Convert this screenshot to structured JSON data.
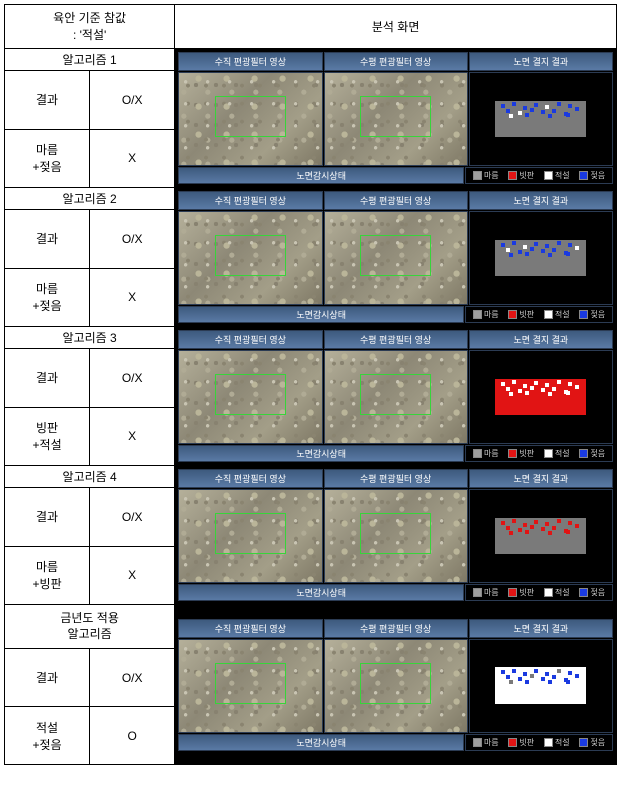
{
  "header": {
    "left_line1": "육안 기준 참값",
    "left_line2": ": '적설'",
    "right": "분석 화면"
  },
  "col_titles": {
    "c1": "수직 편광필터 영상",
    "c2": "수평 편광필터 영상",
    "c3": "노면 결지 결과"
  },
  "status_label": "노면감시상태",
  "legend": {
    "l1": "마름",
    "l2": "빗판",
    "l3": "적설",
    "l4": "젖음",
    "c1": "#9e9e9e",
    "c2": "#e11414",
    "c3": "#ffffff",
    "c4": "#1a3ae0"
  },
  "rows": [
    {
      "t": "알고리즘 1",
      "r1l": "결과",
      "r1v": "O/X",
      "r2l": "마름\n+젖음",
      "r2v": "X",
      "det": {
        "bg": "#7a7a7a",
        "p": [
          "#1a3ae0",
          "#1a3ae0",
          "#1a3ae0",
          "#1a3ae0",
          "#ffffff",
          "#1a3ae0",
          "#1a3ae0",
          "#1a3ae0",
          "#ffffff",
          "#1a3ae0",
          "#1a3ae0",
          "#1a3ae0",
          "#1a3ae0",
          "#1a3ae0",
          "#ffffff",
          "#1a3ae0",
          "#1a3ae0",
          "#1a3ae0"
        ]
      }
    },
    {
      "t": "알고리즘 2",
      "r1l": "결과",
      "r1v": "O/X",
      "r2l": "마름\n+젖음",
      "r2v": "X",
      "det": {
        "bg": "#7a7a7a",
        "p": [
          "#1a3ae0",
          "#1a3ae0",
          "#ffffff",
          "#1a3ae0",
          "#1a3ae0",
          "#1a3ae0",
          "#1a3ae0",
          "#ffffff",
          "#1a3ae0",
          "#1a3ae0",
          "#1a3ae0",
          "#1a3ae0",
          "#1a3ae0",
          "#ffffff",
          "#1a3ae0",
          "#1a3ae0",
          "#1a3ae0",
          "#1a3ae0"
        ]
      }
    },
    {
      "t": "알고리즘 3",
      "r1l": "결과",
      "r1v": "O/X",
      "r2l": "빙판\n+적설",
      "r2v": "X",
      "det": {
        "bg": "#e11414",
        "p": [
          "#ffffff",
          "#ffffff",
          "#ffffff",
          "#ffffff",
          "#ffffff",
          "#ffffff",
          "#ffffff",
          "#ffffff",
          "#ffffff",
          "#ffffff",
          "#ffffff",
          "#ffffff",
          "#ffffff",
          "#ffffff",
          "#ffffff",
          "#ffffff",
          "#ffffff",
          "#ffffff"
        ]
      }
    },
    {
      "t": "알고리즘 4",
      "r1l": "결과",
      "r1v": "O/X",
      "r2l": "마름\n+빙판",
      "r2v": "X",
      "det": {
        "bg": "#7a7a7a",
        "p": [
          "#e11414",
          "#e11414",
          "#e11414",
          "#e11414",
          "#e11414",
          "#e11414",
          "#e11414",
          "#e11414",
          "#e11414",
          "#e11414",
          "#e11414",
          "#e11414",
          "#e11414",
          "#e11414",
          "#e11414",
          "#e11414",
          "#e11414",
          "#e11414"
        ]
      }
    },
    {
      "t": "금년도 적용",
      "t2": "알고리즘",
      "r1l": "결과",
      "r1v": "O/X",
      "r2l": "적설\n+젖음",
      "r2v": "O",
      "det": {
        "bg": "#ffffff",
        "p": [
          "#1a3ae0",
          "#1a3ae0",
          "#1a3ae0",
          "#1a3ae0",
          "#1a3ae0",
          "#7a7a7a",
          "#1a3ae0",
          "#1a3ae0",
          "#1a3ae0",
          "#7a7a7a",
          "#1a3ae0",
          "#1a3ae0",
          "#1a3ae0",
          "#1a3ae0",
          "#7a7a7a",
          "#1a3ae0",
          "#1a3ae0",
          "#1a3ae0"
        ]
      }
    }
  ],
  "pix_pos": [
    [
      6,
      8
    ],
    [
      18,
      4
    ],
    [
      30,
      14
    ],
    [
      42,
      6
    ],
    [
      55,
      12
    ],
    [
      68,
      5
    ],
    [
      80,
      10
    ],
    [
      12,
      22
    ],
    [
      25,
      28
    ],
    [
      38,
      20
    ],
    [
      50,
      26
    ],
    [
      62,
      22
    ],
    [
      75,
      30
    ],
    [
      88,
      18
    ],
    [
      15,
      36
    ],
    [
      33,
      34
    ],
    [
      58,
      36
    ],
    [
      78,
      34
    ]
  ]
}
